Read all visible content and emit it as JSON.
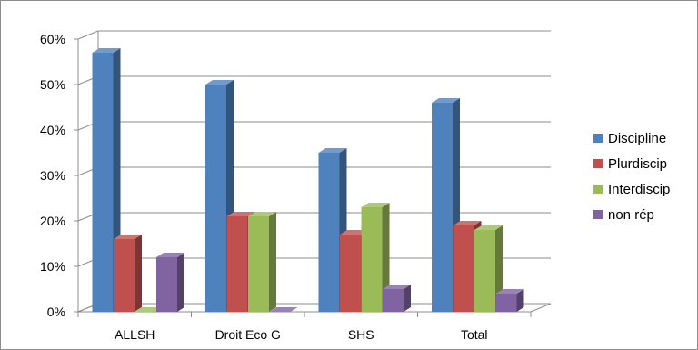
{
  "chart_data": {
    "type": "bar",
    "title": "",
    "xlabel": "",
    "ylabel": "",
    "categories": [
      "ALLSH",
      "Droit Eco G",
      "SHS",
      "Total"
    ],
    "series": [
      {
        "name": "Discipline",
        "values": [
          57,
          50,
          35,
          46
        ],
        "color": "#4f81bd"
      },
      {
        "name": "Plurdiscip",
        "values": [
          16,
          21,
          17,
          19
        ],
        "color": "#c0504d"
      },
      {
        "name": "Interdiscip",
        "values": [
          0,
          21,
          23,
          18
        ],
        "color": "#9bbb59"
      },
      {
        "name": "non rép",
        "values": [
          12,
          0,
          5,
          4
        ],
        "color": "#8064a2"
      }
    ],
    "value_unit": "%",
    "ylim": [
      0,
      60
    ],
    "yticks": [
      "0%",
      "10%",
      "20%",
      "30%",
      "40%",
      "50%",
      "60%"
    ],
    "grid": true,
    "legend_position": "right",
    "style": "3d-clustered-column"
  }
}
